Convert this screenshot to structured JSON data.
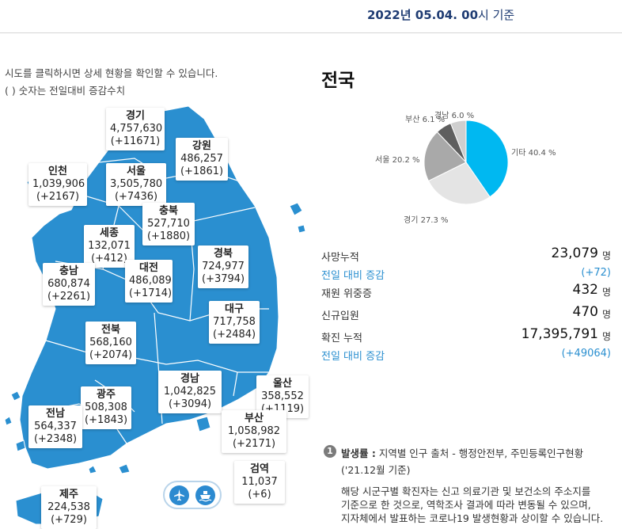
{
  "header": {
    "date": "2022년 05.04. 00",
    "suffix": "시 기준"
  },
  "hints": {
    "line1": "시도를 클릭하시면 상세 현황을 확인할 수 있습니다.",
    "line2": "( ) 숫자는 전일대비 증감수치"
  },
  "colors": {
    "map_fill": "#2a8fd0",
    "accent": "#1f3c73",
    "link": "#2a8fd0"
  },
  "regions": {
    "gyeonggi": {
      "name": "경기",
      "count": "4,757,630",
      "delta": "(+11671)"
    },
    "gangwon": {
      "name": "강원",
      "count": "486,257",
      "delta": "(+1861)"
    },
    "incheon": {
      "name": "인천",
      "count": "1,039,906",
      "delta": "(+2167)"
    },
    "seoul": {
      "name": "서울",
      "count": "3,505,780",
      "delta": "(+7436)"
    },
    "chungbuk": {
      "name": "충북",
      "count": "527,710",
      "delta": "(+1880)"
    },
    "sejong": {
      "name": "세종",
      "count": "132,071",
      "delta": "(+412)"
    },
    "gyeongbuk": {
      "name": "경북",
      "count": "724,977",
      "delta": "(+3794)"
    },
    "chungnam": {
      "name": "충남",
      "count": "680,874",
      "delta": "(+2261)"
    },
    "daejeon": {
      "name": "대전",
      "count": "486,089",
      "delta": "(+1714)"
    },
    "daegu": {
      "name": "대구",
      "count": "717,758",
      "delta": "(+2484)"
    },
    "jeonbuk": {
      "name": "전북",
      "count": "568,160",
      "delta": "(+2074)"
    },
    "gyeongnam": {
      "name": "경남",
      "count": "1,042,825",
      "delta": "(+3094)"
    },
    "ulsan": {
      "name": "울산",
      "count": "358,552",
      "delta": "(+1119)"
    },
    "gwangju": {
      "name": "광주",
      "count": "508,308",
      "delta": "(+1843)"
    },
    "jeonnam": {
      "name": "전남",
      "count": "564,337",
      "delta": "(+2348)"
    },
    "busan": {
      "name": "부산",
      "count": "1,058,982",
      "delta": "(+2171)"
    },
    "quarantine": {
      "name": "검역",
      "count": "11,037",
      "delta": "(+6)"
    },
    "jeju": {
      "name": "제주",
      "count": "224,538",
      "delta": "(+729)"
    }
  },
  "icons": {
    "airport": "airplane-icon",
    "seaport": "ship-icon"
  },
  "panel": {
    "title": "전국"
  },
  "chart_data": {
    "type": "pie",
    "title": "전국",
    "slices": [
      {
        "label": "기타",
        "value": 40.4,
        "text": "기타 40.4 %",
        "color": "#00b8f1"
      },
      {
        "label": "경기",
        "value": 27.3,
        "text": "경기 27.3 %",
        "color": "#e4e4e4"
      },
      {
        "label": "서울",
        "value": 20.2,
        "text": "서울 20.2 %",
        "color": "#a9a9a9"
      },
      {
        "label": "부산",
        "value": 6.1,
        "text": "부산 6.1 %",
        "color": "#5f5f5f"
      },
      {
        "label": "경남",
        "value": 6.0,
        "text": "경남 6.0 %",
        "color": "#cfcfcf"
      }
    ]
  },
  "stats": [
    {
      "label": "사망누적",
      "value": "23,079",
      "unit": "명"
    },
    {
      "label": "전일 대비 증감",
      "value": "(+72)",
      "unit": ""
    },
    {
      "label": "재원 위중증",
      "value": "432",
      "unit": "명"
    },
    {
      "label": "신규입원",
      "value": "470",
      "unit": "명"
    },
    {
      "label": "확진 누적",
      "value": "17,395,791",
      "unit": "명"
    },
    {
      "label": "전일 대비 증감",
      "value": "(+49064)",
      "unit": ""
    }
  ],
  "note": {
    "badge": "1",
    "title": "발생률 :",
    "line1": " 지역별 인구 출처 - 행정안전부, 주민등록인구현황",
    "line2": "('21.12월 기준)",
    "line3": "해당 시군구별 확진자는 신고 의료기관 및 보건소의 주소지를",
    "line4": "기준으로 한 것으로, 역학조사 결과에 따라 변동될 수 있으며,",
    "line5": "지자체에서 발표하는 코로나19 발생현황과 상이할 수 있습니다."
  }
}
